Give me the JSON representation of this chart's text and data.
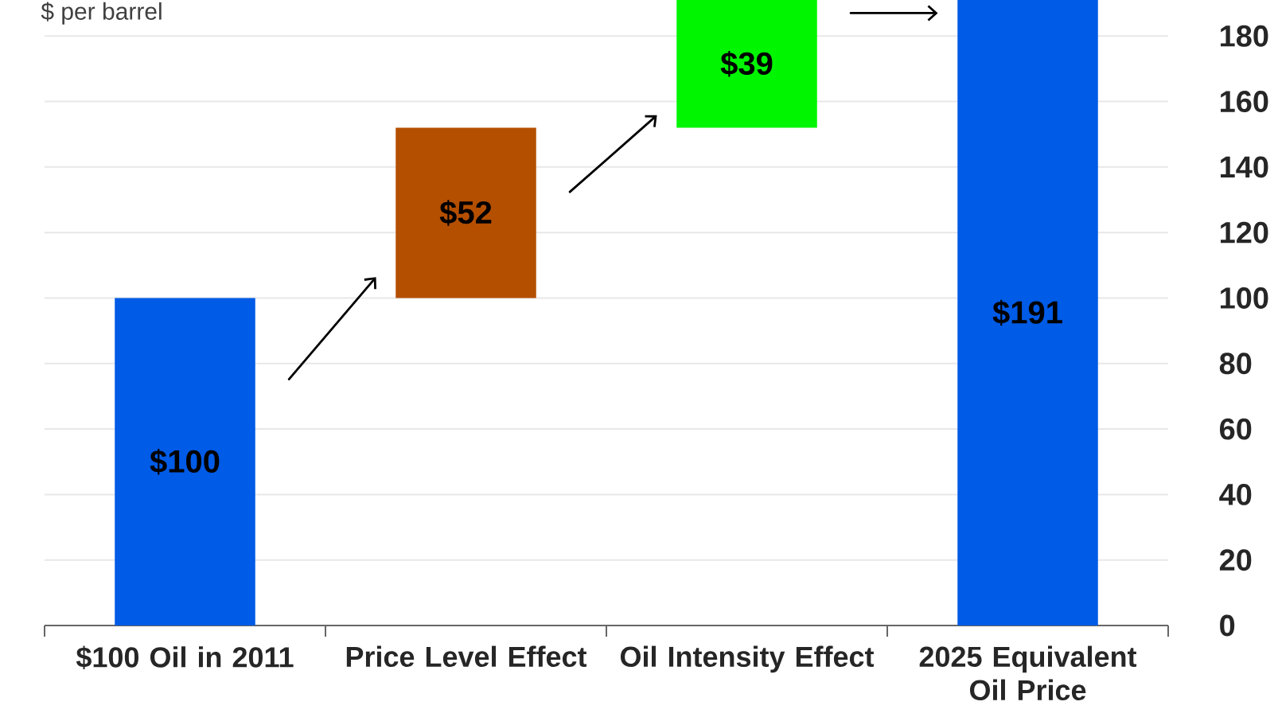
{
  "chart_data": {
    "type": "bar",
    "ylabel": "$ per barrel",
    "categories": [
      "$100 Oil in 2011",
      "Price Level Effect",
      "Oil Intensity Effect",
      "2025 Equivalent Oil Price"
    ],
    "values": [
      100,
      52,
      39,
      191
    ],
    "base": [
      0,
      100,
      152,
      0
    ],
    "colors": [
      "#005be6",
      "#b44f00",
      "#00f500",
      "#005be6"
    ],
    "value_labels": [
      "$100",
      "$52",
      "$39",
      "$191"
    ],
    "ylim": [
      0,
      191
    ],
    "yticks": [
      0,
      20,
      40,
      60,
      80,
      100,
      120,
      140,
      160,
      180
    ],
    "grid": "y"
  }
}
